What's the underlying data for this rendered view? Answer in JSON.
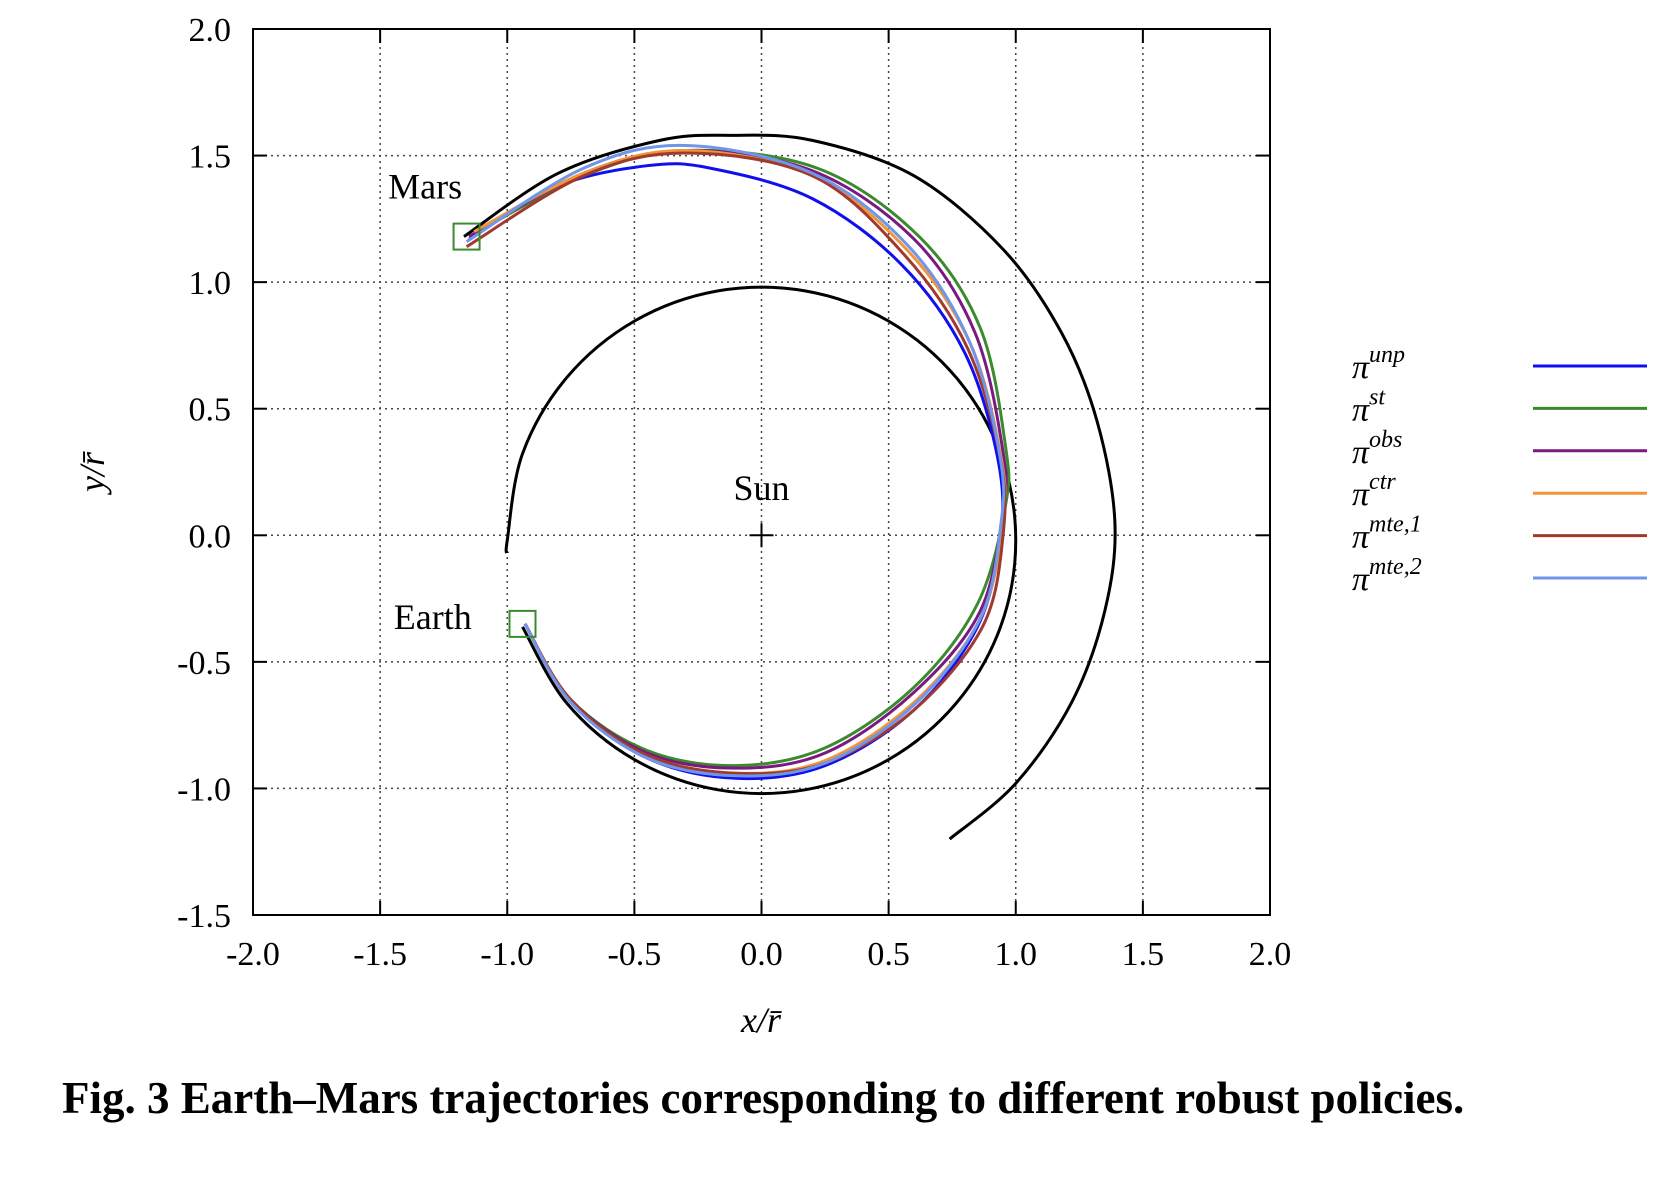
{
  "chart_data": {
    "type": "line",
    "xlabel": "x/r̄",
    "ylabel": "y/r̄",
    "xlim": [
      -2.0,
      2.0
    ],
    "ylim": [
      -1.5,
      2.0
    ],
    "xticks": [
      "-2.0",
      "-1.5",
      "-1.0",
      "-0.5",
      "0.0",
      "0.5",
      "1.0",
      "1.5",
      "2.0"
    ],
    "yticks": [
      "2.0",
      "1.5",
      "1.0",
      "0.5",
      "0.0",
      "-0.5",
      "-1.0",
      "-1.5"
    ],
    "grid": true,
    "legend_position": "right-outside",
    "annotations": [
      {
        "text": "Mars",
        "x": -1.5,
        "y": 1.33
      },
      {
        "text": "Sun",
        "x": 0.0,
        "y": 0.14
      },
      {
        "text": "Earth",
        "x": -1.47,
        "y": -0.37
      }
    ],
    "markers": {
      "sun": {
        "x": 0.0,
        "y": 0.0,
        "symbol": "plus",
        "color": "#000000"
      },
      "mars_box": {
        "x": -1.16,
        "y": 1.18,
        "symbol": "square",
        "color": "#3b8a2e"
      },
      "earth_box": {
        "x": -0.94,
        "y": -0.35,
        "symbol": "square",
        "color": "#3b8a2e"
      }
    },
    "orbits": [
      {
        "color": "#000000",
        "points": [
          [
            -1.0,
            -0.07
          ],
          [
            -1.0,
            -0.02
          ],
          [
            -0.94,
            0.322
          ],
          [
            -0.766,
            0.623
          ],
          [
            -0.5,
            0.846
          ],
          [
            -0.174,
            0.965
          ],
          [
            0.174,
            0.965
          ],
          [
            0.5,
            0.846
          ],
          [
            0.766,
            0.623
          ],
          [
            0.94,
            0.322
          ],
          [
            1.0,
            -0.02
          ],
          [
            0.94,
            -0.362
          ],
          [
            0.766,
            -0.663
          ],
          [
            0.5,
            -0.886
          ],
          [
            0.174,
            -1.005
          ],
          [
            -0.174,
            -1.005
          ],
          [
            -0.5,
            -0.886
          ],
          [
            -0.766,
            -0.663
          ],
          [
            -0.94,
            -0.362
          ]
        ]
      },
      {
        "color": "#000000",
        "points": [
          [
            -1.17,
            1.18
          ],
          [
            -0.8,
            1.43
          ],
          [
            -0.4,
            1.56
          ],
          [
            -0.12,
            1.58
          ],
          [
            0.2,
            1.56
          ],
          [
            0.6,
            1.42
          ],
          [
            0.95,
            1.13
          ],
          [
            1.18,
            0.8
          ],
          [
            1.32,
            0.45
          ],
          [
            1.39,
            0.05
          ],
          [
            1.35,
            -0.3
          ],
          [
            1.22,
            -0.66
          ],
          [
            1.0,
            -0.98
          ],
          [
            0.74,
            -1.2
          ]
        ]
      }
    ],
    "series": [
      {
        "name": "unp",
        "color": "#1010ee",
        "points": [
          [
            -0.93,
            -0.35
          ],
          [
            -0.75,
            -0.66
          ],
          [
            -0.45,
            -0.88
          ],
          [
            -0.1,
            -0.96
          ],
          [
            0.25,
            -0.91
          ],
          [
            0.6,
            -0.69
          ],
          [
            0.85,
            -0.36
          ],
          [
            0.94,
            0.0
          ],
          [
            0.93,
            0.3
          ],
          [
            0.8,
            0.72
          ],
          [
            0.55,
            1.07
          ],
          [
            0.2,
            1.33
          ],
          [
            -0.2,
            1.45
          ],
          [
            -0.45,
            1.46
          ],
          [
            -0.8,
            1.38
          ],
          [
            -1.15,
            1.17
          ]
        ]
      },
      {
        "name": "st",
        "color": "#3b8a2e",
        "points": [
          [
            -0.93,
            -0.35
          ],
          [
            -0.75,
            -0.65
          ],
          [
            -0.45,
            -0.85
          ],
          [
            -0.1,
            -0.91
          ],
          [
            0.25,
            -0.84
          ],
          [
            0.6,
            -0.6
          ],
          [
            0.85,
            -0.27
          ],
          [
            0.96,
            0.12
          ],
          [
            0.96,
            0.35
          ],
          [
            0.86,
            0.82
          ],
          [
            0.62,
            1.18
          ],
          [
            0.22,
            1.45
          ],
          [
            -0.3,
            1.52
          ],
          [
            -0.7,
            1.42
          ],
          [
            -1.15,
            1.18
          ]
        ]
      },
      {
        "name": "obs",
        "color": "#7a1a80",
        "points": [
          [
            -0.93,
            -0.35
          ],
          [
            -0.75,
            -0.65
          ],
          [
            -0.45,
            -0.86
          ],
          [
            -0.1,
            -0.92
          ],
          [
            0.25,
            -0.86
          ],
          [
            0.6,
            -0.62
          ],
          [
            0.86,
            -0.3
          ],
          [
            0.95,
            0.1
          ],
          [
            0.95,
            0.33
          ],
          [
            0.84,
            0.8
          ],
          [
            0.6,
            1.17
          ],
          [
            0.2,
            1.44
          ],
          [
            -0.3,
            1.52
          ],
          [
            -0.7,
            1.43
          ],
          [
            -1.15,
            1.18
          ]
        ]
      },
      {
        "name": "ctr",
        "color": "#f39438",
        "points": [
          [
            -0.93,
            -0.35
          ],
          [
            -0.75,
            -0.66
          ],
          [
            -0.45,
            -0.87
          ],
          [
            -0.1,
            -0.94
          ],
          [
            0.25,
            -0.89
          ],
          [
            0.6,
            -0.66
          ],
          [
            0.86,
            -0.33
          ],
          [
            0.95,
            0.05
          ],
          [
            0.94,
            0.32
          ],
          [
            0.82,
            0.76
          ],
          [
            0.57,
            1.13
          ],
          [
            0.2,
            1.42
          ],
          [
            -0.3,
            1.52
          ],
          [
            -0.7,
            1.43
          ],
          [
            -1.13,
            1.2
          ]
        ]
      },
      {
        "name": "mte,1",
        "color": "#a03a2e",
        "points": [
          [
            -0.93,
            -0.35
          ],
          [
            -0.75,
            -0.65
          ],
          [
            -0.45,
            -0.87
          ],
          [
            -0.1,
            -0.94
          ],
          [
            0.25,
            -0.9
          ],
          [
            0.6,
            -0.69
          ],
          [
            0.87,
            -0.36
          ],
          [
            0.95,
            0.0
          ],
          [
            0.94,
            0.3
          ],
          [
            0.81,
            0.74
          ],
          [
            0.56,
            1.11
          ],
          [
            0.2,
            1.42
          ],
          [
            -0.3,
            1.51
          ],
          [
            -0.7,
            1.42
          ],
          [
            -1.16,
            1.14
          ]
        ]
      },
      {
        "name": "mte,2",
        "color": "#6f96e8",
        "points": [
          [
            -0.93,
            -0.35
          ],
          [
            -0.75,
            -0.66
          ],
          [
            -0.45,
            -0.88
          ],
          [
            -0.1,
            -0.95
          ],
          [
            0.25,
            -0.9
          ],
          [
            0.6,
            -0.67
          ],
          [
            0.86,
            -0.33
          ],
          [
            0.94,
            0.03
          ],
          [
            0.94,
            0.3
          ],
          [
            0.82,
            0.76
          ],
          [
            0.58,
            1.14
          ],
          [
            0.2,
            1.43
          ],
          [
            -0.3,
            1.54
          ],
          [
            -0.7,
            1.45
          ],
          [
            -1.16,
            1.16
          ]
        ]
      }
    ],
    "legend": [
      {
        "base": "π",
        "sup": "unp"
      },
      {
        "base": "π",
        "sup": "st"
      },
      {
        "base": "π",
        "sup": "obs"
      },
      {
        "base": "π",
        "sup": "ctr"
      },
      {
        "base": "π",
        "sup": "mte,1"
      },
      {
        "base": "π",
        "sup": "mte,2"
      }
    ]
  },
  "caption": "Fig. 3  Earth–Mars trajectories corresponding to different robust policies."
}
